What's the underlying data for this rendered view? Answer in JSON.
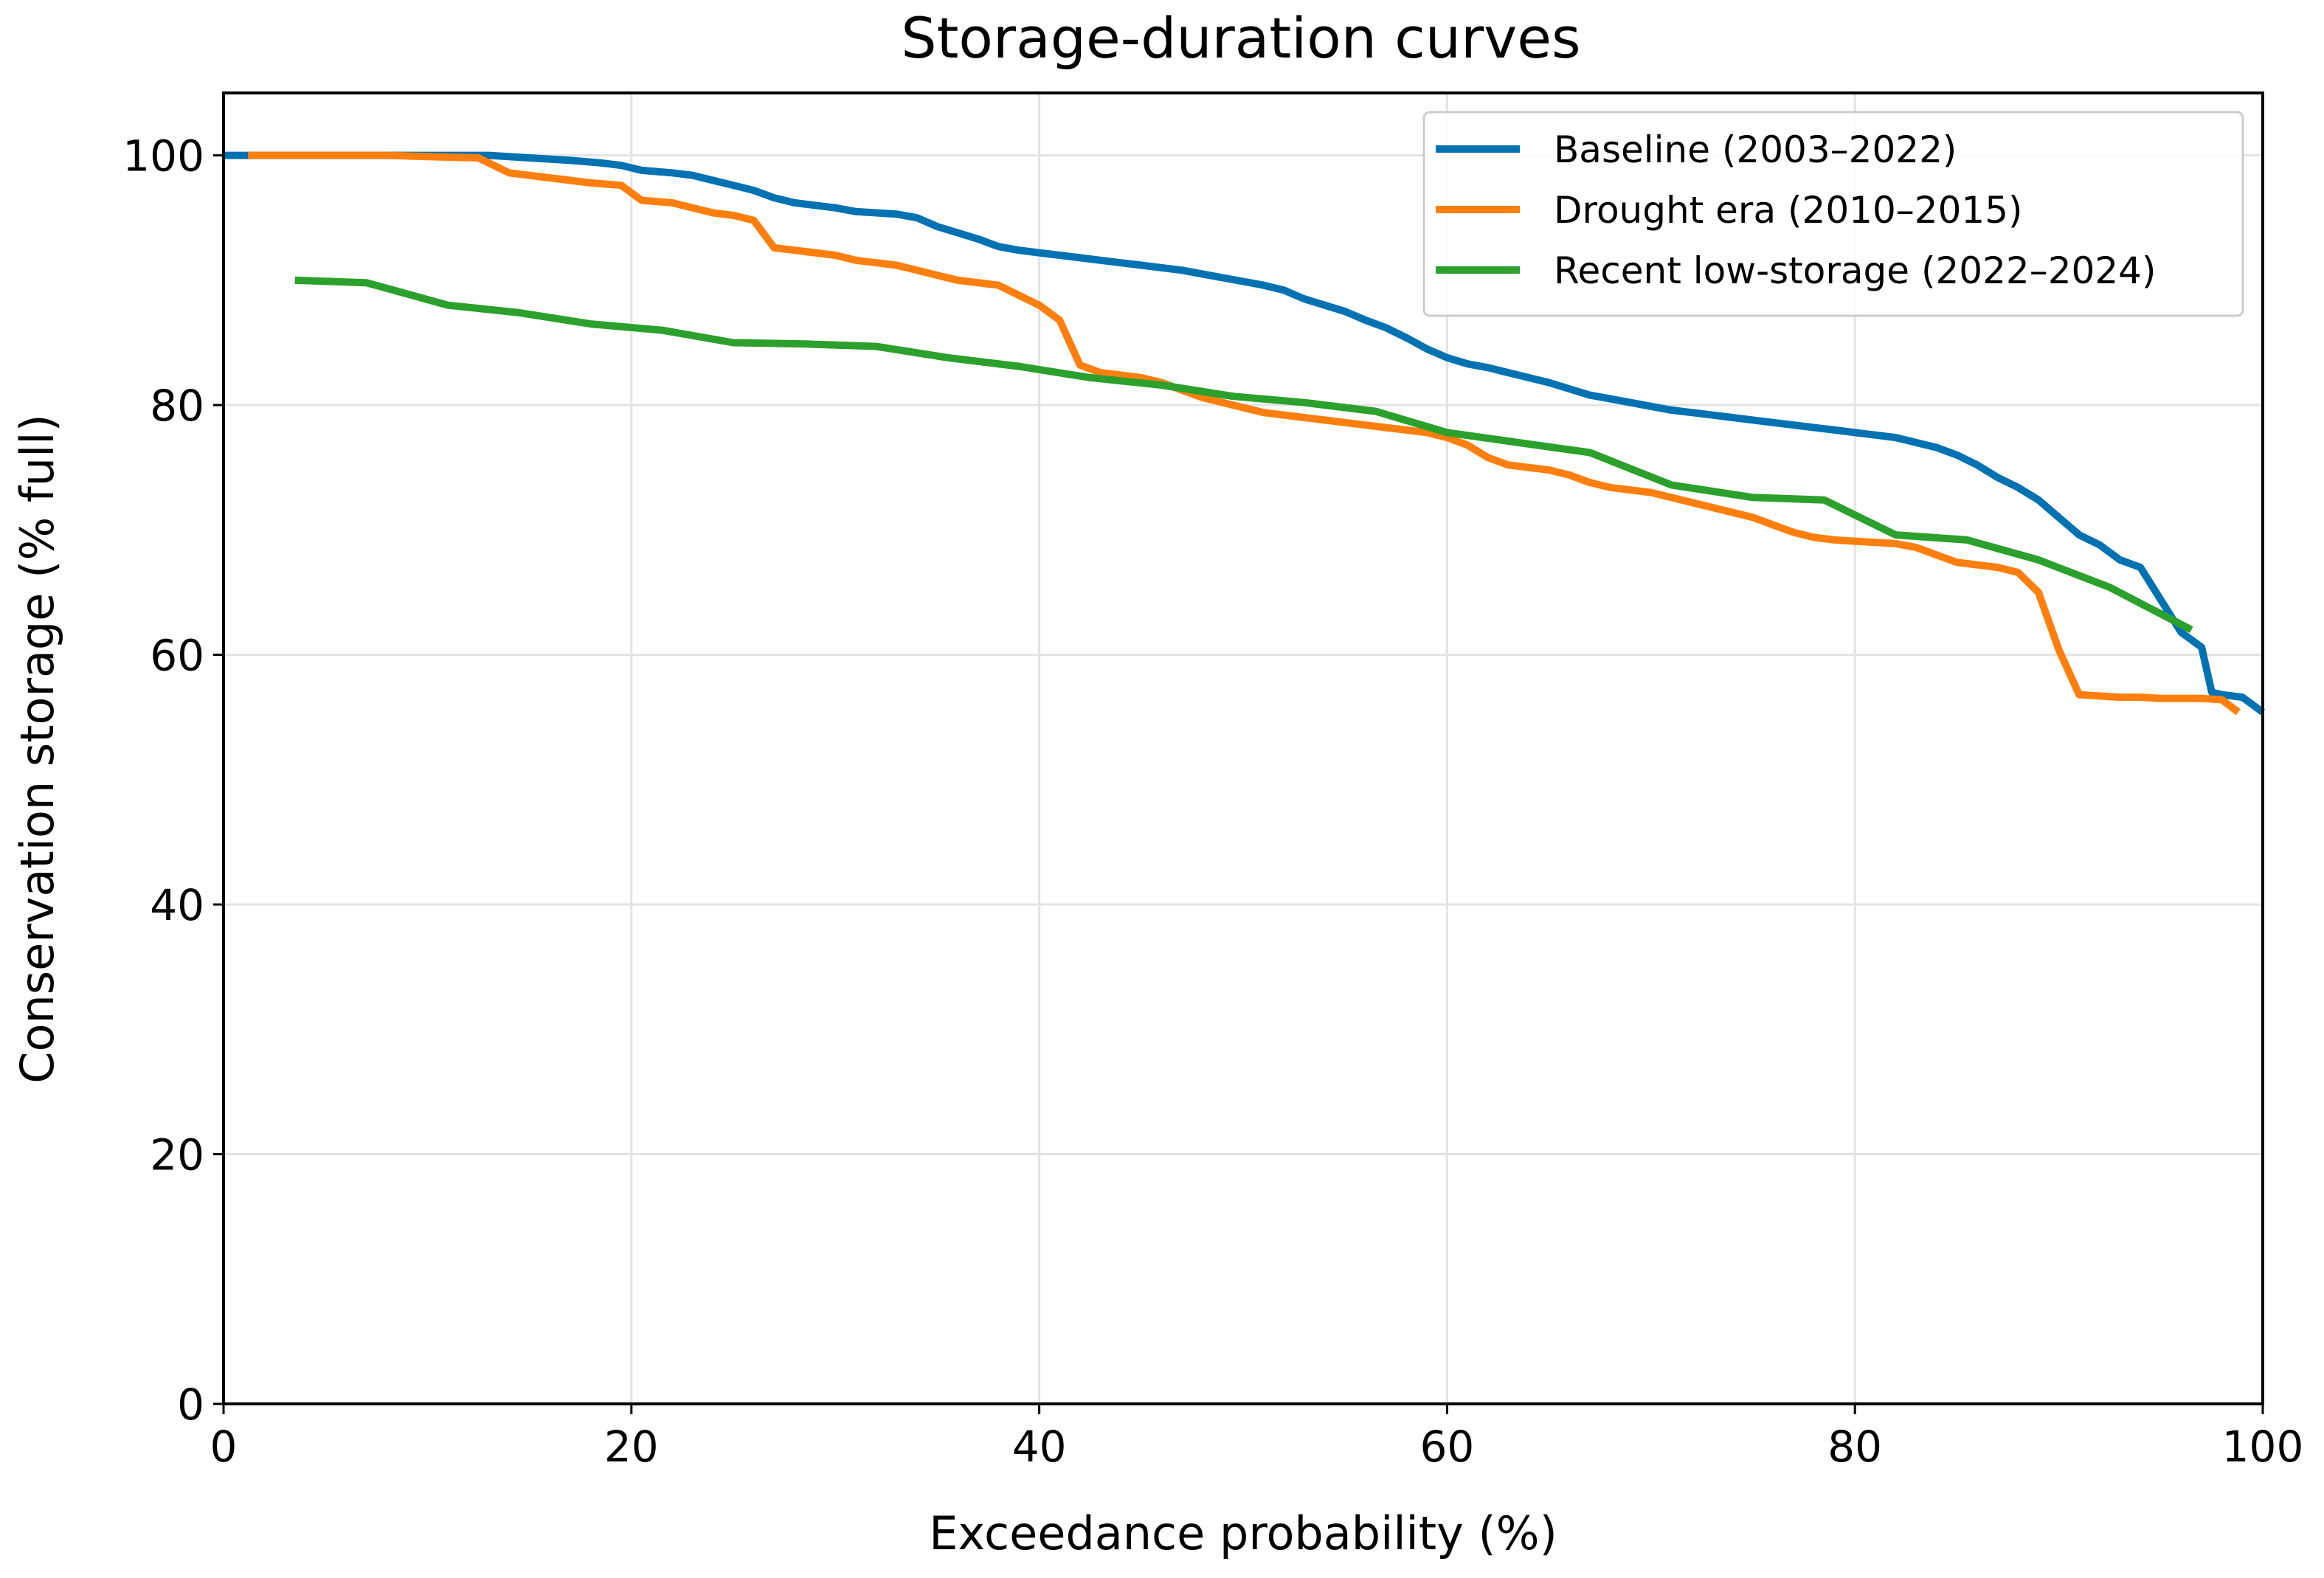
{
  "chart_data": {
    "type": "line",
    "title": "Storage-duration curves",
    "xlabel": "Exceedance probability (%)",
    "ylabel": "Conservation storage (% full)",
    "xlim": [
      0,
      100
    ],
    "ylim": [
      0,
      105
    ],
    "xticks": [
      "0",
      "20",
      "40",
      "60",
      "80",
      "100"
    ],
    "yticks": [
      "0",
      "20",
      "40",
      "60",
      "80",
      "100"
    ],
    "grid": true,
    "legend_position": "top-right",
    "series": [
      {
        "name": "Baseline (2003–2022)",
        "color": "#0072b2",
        "x": [
          0,
          1,
          5,
          10,
          13,
          15,
          17,
          18.5,
          19.5,
          20.5,
          22,
          23,
          24,
          25,
          26,
          27,
          28,
          29,
          30,
          31,
          32,
          33,
          34,
          35,
          36,
          37,
          38,
          39,
          40,
          41,
          42,
          43,
          44,
          45,
          46,
          47,
          48,
          49,
          50,
          51,
          52,
          53,
          54,
          55,
          56,
          57,
          58,
          59,
          60,
          61,
          62,
          63,
          64,
          65,
          66,
          67,
          68,
          69,
          70,
          71,
          72,
          73,
          74,
          75,
          76,
          77,
          78,
          79,
          80,
          81,
          82,
          83,
          84,
          85,
          86,
          87,
          88,
          89,
          90,
          91,
          92,
          93,
          94,
          95,
          96,
          97,
          97.5,
          98,
          99,
          100
        ],
        "y": [
          100,
          100,
          100,
          100,
          100,
          99.8,
          99.6,
          99.4,
          99.2,
          98.8,
          98.6,
          98.4,
          98.0,
          97.6,
          97.2,
          96.6,
          96.2,
          96.0,
          95.8,
          95.5,
          95.4,
          95.3,
          95.0,
          94.3,
          93.8,
          93.3,
          92.7,
          92.4,
          92.2,
          92.0,
          91.8,
          91.6,
          91.4,
          91.2,
          91.0,
          90.8,
          90.5,
          90.2,
          89.9,
          89.6,
          89.2,
          88.5,
          88.0,
          87.5,
          86.8,
          86.2,
          85.4,
          84.5,
          83.8,
          83.3,
          83.0,
          82.6,
          82.2,
          81.8,
          81.3,
          80.8,
          80.5,
          80.2,
          79.9,
          79.6,
          79.4,
          79.2,
          79.0,
          78.8,
          78.6,
          78.4,
          78.2,
          78.0,
          77.8,
          77.6,
          77.4,
          77.0,
          76.6,
          76.0,
          75.2,
          74.2,
          73.4,
          72.4,
          71.0,
          69.6,
          68.8,
          67.6,
          67.0,
          64.4,
          61.8,
          60.6,
          57.0,
          56.8,
          56.6,
          55.4
        ]
      },
      {
        "name": "Drought era (2010–2015)",
        "color": "#ff7f0e",
        "x": [
          1.2,
          5,
          8,
          10,
          12.5,
          14,
          16,
          18,
          19.5,
          20.5,
          22,
          23,
          24,
          25,
          26,
          27,
          28,
          29,
          30,
          31,
          32,
          33,
          34,
          35,
          36,
          37,
          38,
          39,
          40,
          41,
          42,
          43,
          44,
          45,
          46,
          47,
          48,
          49,
          50,
          51,
          52,
          53,
          54,
          55,
          56,
          57,
          58,
          59,
          60,
          61,
          62,
          63,
          64,
          65,
          66,
          67,
          68,
          69,
          70,
          71,
          72,
          73,
          74,
          75,
          76,
          77,
          78,
          79,
          80,
          81,
          82,
          83,
          84,
          85,
          86,
          87,
          88,
          89,
          90,
          91,
          92,
          93,
          94,
          95,
          96,
          97,
          98,
          98.8
        ],
        "y": [
          100,
          100,
          100,
          99.9,
          99.8,
          98.6,
          98.2,
          97.8,
          97.6,
          96.4,
          96.2,
          95.8,
          95.4,
          95.2,
          94.8,
          92.6,
          92.4,
          92.2,
          92.0,
          91.6,
          91.4,
          91.2,
          90.8,
          90.4,
          90.0,
          89.8,
          89.6,
          88.8,
          88.0,
          86.8,
          83.2,
          82.6,
          82.4,
          82.2,
          81.8,
          81.2,
          80.6,
          80.2,
          79.8,
          79.4,
          79.2,
          79.0,
          78.8,
          78.6,
          78.4,
          78.2,
          78.0,
          77.8,
          77.4,
          76.8,
          75.8,
          75.2,
          75.0,
          74.8,
          74.4,
          73.8,
          73.4,
          73.2,
          73.0,
          72.6,
          72.2,
          71.8,
          71.4,
          71.0,
          70.4,
          69.8,
          69.4,
          69.2,
          69.1,
          69.0,
          68.9,
          68.6,
          68.0,
          67.4,
          67.2,
          67.0,
          66.6,
          65.0,
          60.4,
          56.8,
          56.7,
          56.6,
          56.6,
          56.5,
          56.5,
          56.5,
          56.4,
          55.4
        ]
      },
      {
        "name": "Recent low-storage (2022–2024)",
        "color": "#2ca02c",
        "x": [
          3.5,
          7,
          11,
          14.5,
          18,
          21.5,
          25,
          28.5,
          32,
          35.5,
          39,
          42.5,
          46,
          49.5,
          53,
          56.5,
          60,
          63.5,
          67,
          71,
          75,
          78.5,
          82,
          85.5,
          89,
          92.5,
          96.5
        ],
        "y": [
          90.0,
          89.8,
          88.0,
          87.4,
          86.5,
          86.0,
          85.0,
          84.9,
          84.7,
          83.8,
          83.1,
          82.2,
          81.6,
          80.7,
          80.2,
          79.5,
          77.8,
          77.0,
          76.2,
          73.6,
          72.6,
          72.4,
          69.6,
          69.2,
          67.6,
          65.4,
          62.0
        ]
      }
    ]
  }
}
